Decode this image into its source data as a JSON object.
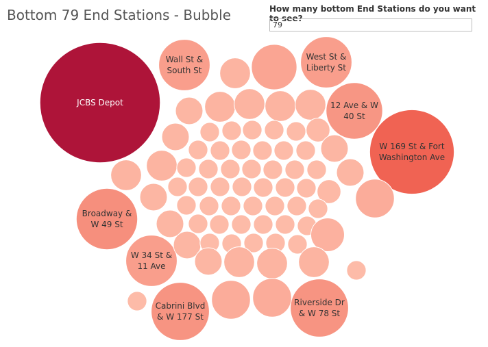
{
  "chart_data": {
    "type": "bubble",
    "title": "Bottom 79 End Stations - Bubble",
    "categories": [
      "JCBS Depot",
      "Wall St & South St",
      "West St & Liberty St",
      "12 Ave & W 40 St",
      "W 169 St & Fort Washington Ave",
      "Broadway & W 49 St",
      "W 34 St & 11 Ave",
      "Cabrini Blvd & W 177 St",
      "Riverside Dr & W 78 St",
      null,
      null,
      null,
      null,
      null,
      null,
      null,
      null,
      null,
      null,
      null,
      null,
      null,
      null,
      null,
      null,
      null,
      null,
      null,
      null,
      null,
      null,
      null,
      null,
      null,
      null,
      null,
      null,
      null,
      null,
      null,
      null,
      null,
      null,
      null,
      null,
      null,
      null,
      null,
      null,
      null,
      null,
      null,
      null,
      null,
      null,
      null,
      null,
      null,
      null,
      null,
      null,
      null,
      null,
      null,
      null,
      null,
      null,
      null,
      null,
      null,
      null,
      null,
      null,
      null,
      null,
      null,
      null,
      null,
      null
    ],
    "values": [
      77,
      14,
      14,
      17,
      38,
      20,
      14,
      18,
      18,
      5,
      11,
      4,
      5,
      5,
      5,
      5,
      4,
      2,
      2,
      2,
      2,
      2,
      3,
      5,
      2,
      2,
      2,
      2,
      2,
      2,
      4,
      5,
      2,
      2,
      2,
      2,
      2,
      2,
      2,
      4,
      4,
      2,
      2,
      2,
      2,
      2,
      2,
      2,
      3,
      8,
      2,
      2,
      2,
      2,
      2,
      2,
      2,
      4,
      2,
      2,
      2,
      2,
      2,
      2,
      6,
      4,
      2,
      2,
      2,
      2,
      2,
      4,
      5,
      5,
      5,
      8,
      8,
      2,
      2
    ],
    "color_scale": [
      "#fdbba8",
      "#ef5f4f",
      "#ae1439"
    ]
  },
  "parameter": {
    "label": "How many bottom End Stations do you want to see?",
    "value": "79"
  }
}
